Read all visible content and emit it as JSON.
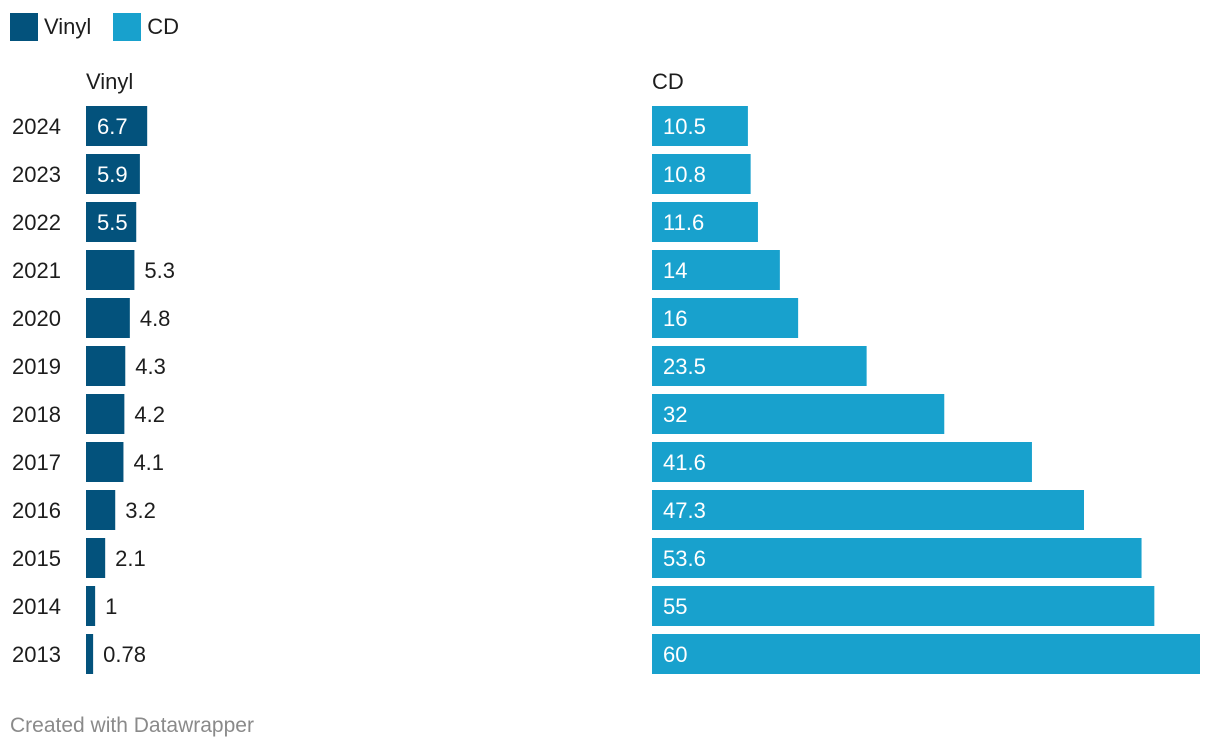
{
  "legend": [
    {
      "name": "Vinyl",
      "color": "#03527c"
    },
    {
      "name": "CD",
      "color": "#18a1cd"
    }
  ],
  "footer": "Created with Datawrapper",
  "chart_data": {
    "type": "bar",
    "orientation": "horizontal",
    "categories": [
      "2024",
      "2023",
      "2022",
      "2021",
      "2020",
      "2019",
      "2018",
      "2017",
      "2016",
      "2015",
      "2014",
      "2013"
    ],
    "series": [
      {
        "name": "Vinyl",
        "color": "#03527c",
        "values": [
          6.7,
          5.9,
          5.5,
          5.3,
          4.8,
          4.3,
          4.2,
          4.1,
          3.2,
          2.1,
          1,
          0.78
        ],
        "labels": [
          "6.7",
          "5.9",
          "5.5",
          "5.3",
          "4.8",
          "4.3",
          "4.2",
          "4.1",
          "3.2",
          "2.1",
          "1",
          "0.78"
        ]
      },
      {
        "name": "CD",
        "color": "#18a1cd",
        "values": [
          10.5,
          10.8,
          11.6,
          14,
          16,
          23.5,
          32,
          41.6,
          47.3,
          53.6,
          55,
          60
        ],
        "labels": [
          "10.5",
          "10.8",
          "11.6",
          "14",
          "16",
          "23.5",
          "32",
          "41.6",
          "47.3",
          "53.6",
          "55",
          "60"
        ]
      }
    ],
    "xlim": [
      0,
      60
    ],
    "grid": false,
    "legend_position": "top-left"
  }
}
